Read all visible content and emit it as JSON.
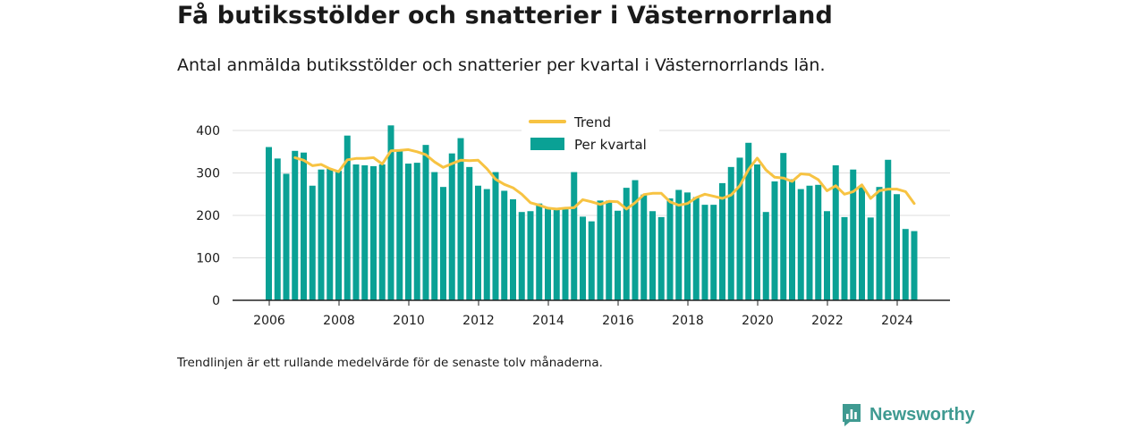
{
  "header": {
    "title": "Få butiksstölder och snatterier i Västernorrland",
    "subtitle": "Antal anmälda butiksstölder och snatterier per kvartal i Västernorrlands län."
  },
  "footer": {
    "note": "Trendlinjen är ett rullande medelvärde för de senaste tolv månaderna.",
    "brand": "Newsworthy",
    "brand_icon": "bar-chart-logo-icon"
  },
  "colors": {
    "bar": "#0aa195",
    "trend": "#f7c342",
    "grid": "#dddddd",
    "axis": "#222222",
    "brand": "#3f9a91"
  },
  "chart_data": {
    "type": "bar",
    "x_start_year": 2006,
    "periods_per_year": 4,
    "xtick_labels": [
      "2006",
      "2008",
      "2010",
      "2012",
      "2014",
      "2016",
      "2018",
      "2020",
      "2022",
      "2024"
    ],
    "ytick_labels": [
      "0",
      "100",
      "200",
      "300",
      "400"
    ],
    "ylim": [
      0,
      420
    ],
    "grid": true,
    "legend": {
      "position": "top-center",
      "entries": [
        "Trend",
        "Per kvartal"
      ]
    },
    "series": [
      {
        "name": "Per kvartal",
        "type": "bar",
        "values": [
          361,
          334,
          298,
          352,
          348,
          270,
          308,
          310,
          305,
          388,
          320,
          318,
          316,
          320,
          412,
          355,
          322,
          324,
          366,
          302,
          267,
          346,
          382,
          314,
          270,
          262,
          302,
          258,
          238,
          208,
          210,
          228,
          218,
          214,
          218,
          302,
          197,
          186,
          235,
          235,
          211,
          265,
          283,
          249,
          210,
          196,
          240,
          260,
          254,
          243,
          225,
          225,
          276,
          314,
          336,
          371,
          320,
          208,
          280,
          347,
          285,
          262,
          270,
          272,
          210,
          318,
          196,
          308,
          266,
          195,
          267,
          331,
          250,
          168,
          163
        ]
      },
      {
        "name": "Trend",
        "type": "line",
        "values": [
          null,
          null,
          null,
          336,
          330,
          317,
          320,
          310,
          303,
          331,
          334,
          334,
          336,
          321,
          352,
          353,
          355,
          350,
          343,
          326,
          313,
          322,
          330,
          329,
          330,
          310,
          285,
          273,
          265,
          250,
          230,
          224,
          217,
          215,
          217,
          218,
          237,
          232,
          226,
          233,
          232,
          215,
          230,
          249,
          252,
          252,
          232,
          224,
          228,
          242,
          250,
          245,
          240,
          248,
          270,
          308,
          335,
          307,
          290,
          288,
          280,
          298,
          296,
          284,
          258,
          270,
          250,
          256,
          272,
          240,
          258,
          262,
          262,
          256,
          228
        ]
      }
    ]
  }
}
